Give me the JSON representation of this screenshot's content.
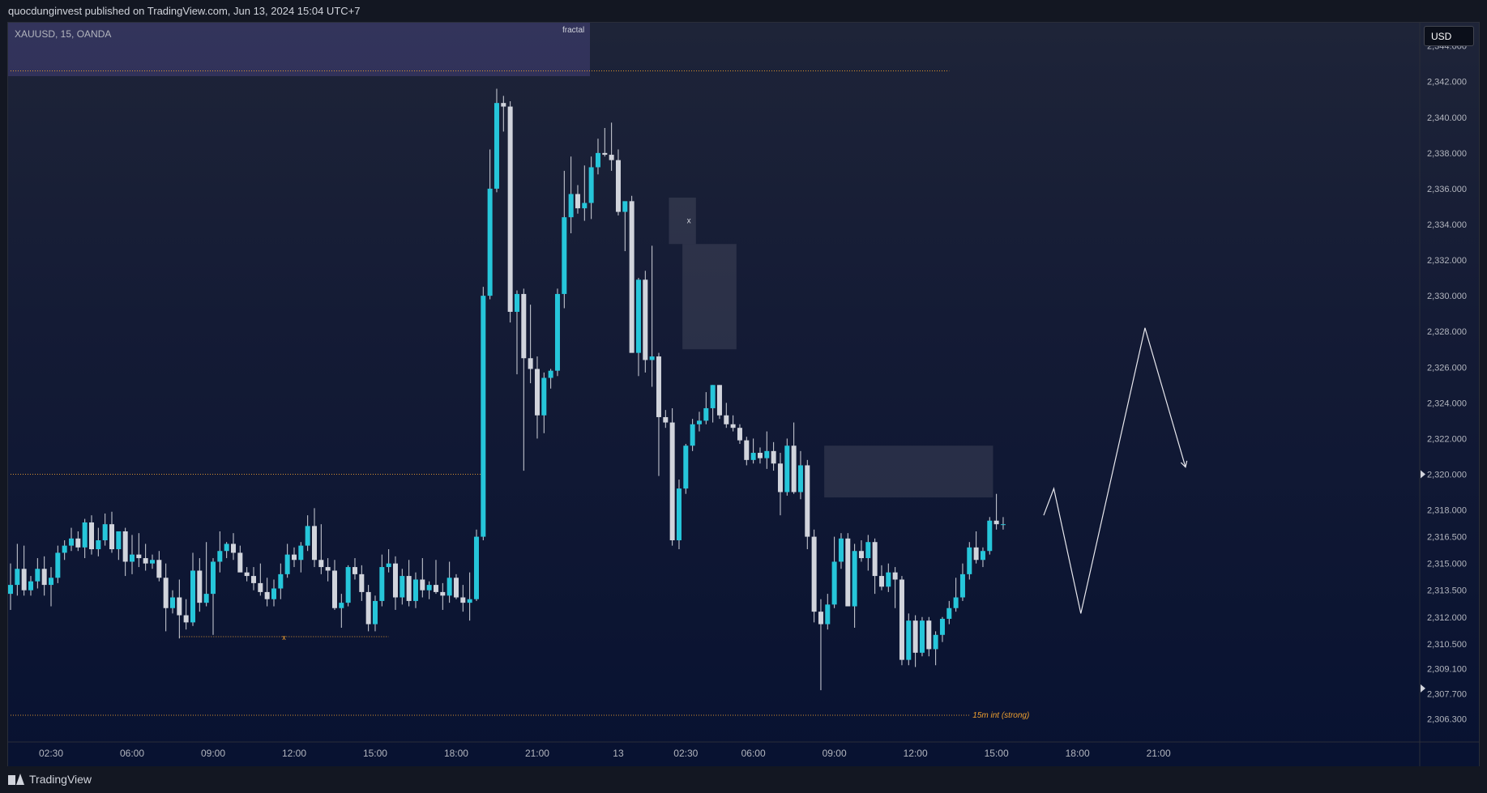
{
  "header": {
    "published_text": "quocdunginvest published on TradingView.com, Jun 13, 2024 15:04 UTC+7"
  },
  "symbol_label": "XAUUSD, 15, OANDA",
  "fractal_label": "fractal",
  "currency_button": "USD",
  "footer": {
    "logo_text": "TradingView"
  },
  "colors": {
    "bull": "#26c6da",
    "bear": "#d1d4dc",
    "accent_line": "#f0a030",
    "text": "#b2b5be"
  },
  "chart_data": {
    "type": "candlestick",
    "symbol": "XAUUSD",
    "interval": "15",
    "ylim": [
      2305,
      2345.3
    ],
    "y_ticks": [
      {
        "value": 2344.0,
        "label": "2,344.000"
      },
      {
        "value": 2342.0,
        "label": "2,342.000"
      },
      {
        "value": 2340.0,
        "label": "2,340.000"
      },
      {
        "value": 2338.0,
        "label": "2,338.000"
      },
      {
        "value": 2336.0,
        "label": "2,336.000"
      },
      {
        "value": 2334.0,
        "label": "2,334.000"
      },
      {
        "value": 2332.0,
        "label": "2,332.000"
      },
      {
        "value": 2330.0,
        "label": "2,330.000"
      },
      {
        "value": 2328.0,
        "label": "2,328.000"
      },
      {
        "value": 2326.0,
        "label": "2,326.000"
      },
      {
        "value": 2324.0,
        "label": "2,324.000"
      },
      {
        "value": 2322.0,
        "label": "2,322.000"
      },
      {
        "value": 2320.0,
        "label": "2,320.000"
      },
      {
        "value": 2318.0,
        "label": "2,318.000"
      },
      {
        "value": 2316.5,
        "label": "2,316.500"
      },
      {
        "value": 2315.0,
        "label": "2,315.000"
      },
      {
        "value": 2313.5,
        "label": "2,313.500"
      },
      {
        "value": 2312.0,
        "label": "2,312.000"
      },
      {
        "value": 2310.5,
        "label": "2,310.500"
      },
      {
        "value": 2309.1,
        "label": "2,309.100"
      },
      {
        "value": 2307.7,
        "label": "2,307.700"
      },
      {
        "value": 2306.3,
        "label": "2,306.300"
      }
    ],
    "x_ticks": [
      {
        "bar": 6,
        "label": "02:30"
      },
      {
        "bar": 18,
        "label": "06:00"
      },
      {
        "bar": 30,
        "label": "09:00"
      },
      {
        "bar": 42,
        "label": "12:00"
      },
      {
        "bar": 54,
        "label": "15:00"
      },
      {
        "bar": 66,
        "label": "18:00"
      },
      {
        "bar": 78,
        "label": "21:00"
      },
      {
        "bar": 90,
        "label": "13"
      },
      {
        "bar": 100,
        "label": "02:30"
      },
      {
        "bar": 110,
        "label": "06:00"
      },
      {
        "bar": 122,
        "label": "09:00"
      },
      {
        "bar": 134,
        "label": "12:00"
      },
      {
        "bar": 146,
        "label": "15:00"
      },
      {
        "bar": 158,
        "label": "18:00"
      },
      {
        "bar": 170,
        "label": "21:00"
      }
    ],
    "price_markers": [
      2320.0,
      2308.0
    ],
    "candles": [
      {
        "o": 2313.3,
        "h": 2315.0,
        "l": 2312.4,
        "c": 2313.8
      },
      {
        "o": 2313.8,
        "h": 2316.1,
        "l": 2313.2,
        "c": 2314.7
      },
      {
        "o": 2314.7,
        "h": 2316.0,
        "l": 2313.2,
        "c": 2313.5
      },
      {
        "o": 2313.5,
        "h": 2314.3,
        "l": 2313.2,
        "c": 2314.0
      },
      {
        "o": 2314.0,
        "h": 2315.3,
        "l": 2313.6,
        "c": 2314.7
      },
      {
        "o": 2314.7,
        "h": 2315.4,
        "l": 2313.2,
        "c": 2313.8
      },
      {
        "o": 2313.8,
        "h": 2314.8,
        "l": 2312.6,
        "c": 2314.2
      },
      {
        "o": 2314.2,
        "h": 2316.0,
        "l": 2313.9,
        "c": 2315.6
      },
      {
        "o": 2315.6,
        "h": 2316.3,
        "l": 2315.2,
        "c": 2316.0
      },
      {
        "o": 2316.0,
        "h": 2317.0,
        "l": 2315.7,
        "c": 2316.4
      },
      {
        "o": 2316.4,
        "h": 2316.8,
        "l": 2315.7,
        "c": 2315.9
      },
      {
        "o": 2315.9,
        "h": 2317.5,
        "l": 2315.3,
        "c": 2317.3
      },
      {
        "o": 2317.3,
        "h": 2317.7,
        "l": 2315.5,
        "c": 2315.8
      },
      {
        "o": 2315.8,
        "h": 2317.0,
        "l": 2315.4,
        "c": 2316.3
      },
      {
        "o": 2316.3,
        "h": 2317.8,
        "l": 2316.0,
        "c": 2317.2
      },
      {
        "o": 2317.2,
        "h": 2317.9,
        "l": 2315.6,
        "c": 2315.8
      },
      {
        "o": 2315.8,
        "h": 2316.5,
        "l": 2315.2,
        "c": 2316.8
      },
      {
        "o": 2316.8,
        "h": 2317.0,
        "l": 2314.3,
        "c": 2315.1
      },
      {
        "o": 2315.1,
        "h": 2316.6,
        "l": 2314.4,
        "c": 2315.5
      },
      {
        "o": 2315.5,
        "h": 2316.7,
        "l": 2314.8,
        "c": 2315.3
      },
      {
        "o": 2315.3,
        "h": 2316.1,
        "l": 2314.6,
        "c": 2315.0
      },
      {
        "o": 2315.0,
        "h": 2315.5,
        "l": 2314.7,
        "c": 2315.2
      },
      {
        "o": 2315.2,
        "h": 2315.7,
        "l": 2314.0,
        "c": 2314.2
      },
      {
        "o": 2314.2,
        "h": 2315.0,
        "l": 2311.2,
        "c": 2312.5
      },
      {
        "o": 2312.5,
        "h": 2313.5,
        "l": 2312.2,
        "c": 2313.1
      },
      {
        "o": 2313.1,
        "h": 2314.1,
        "l": 2310.8,
        "c": 2312.1
      },
      {
        "o": 2312.1,
        "h": 2313.0,
        "l": 2311.3,
        "c": 2311.7
      },
      {
        "o": 2311.7,
        "h": 2315.6,
        "l": 2311.5,
        "c": 2314.6
      },
      {
        "o": 2314.6,
        "h": 2315.3,
        "l": 2312.3,
        "c": 2312.8
      },
      {
        "o": 2312.8,
        "h": 2316.2,
        "l": 2312.6,
        "c": 2313.3
      },
      {
        "o": 2313.3,
        "h": 2315.3,
        "l": 2311.0,
        "c": 2315.1
      },
      {
        "o": 2315.1,
        "h": 2316.8,
        "l": 2314.5,
        "c": 2315.7
      },
      {
        "o": 2315.7,
        "h": 2316.2,
        "l": 2315.3,
        "c": 2316.1
      },
      {
        "o": 2316.1,
        "h": 2316.7,
        "l": 2315.2,
        "c": 2315.6
      },
      {
        "o": 2315.6,
        "h": 2316.0,
        "l": 2314.6,
        "c": 2314.5
      },
      {
        "o": 2314.5,
        "h": 2314.8,
        "l": 2314.0,
        "c": 2314.3
      },
      {
        "o": 2314.3,
        "h": 2314.8,
        "l": 2313.5,
        "c": 2313.9
      },
      {
        "o": 2313.9,
        "h": 2315.0,
        "l": 2313.2,
        "c": 2313.4
      },
      {
        "o": 2313.4,
        "h": 2314.2,
        "l": 2312.6,
        "c": 2313.0
      },
      {
        "o": 2313.0,
        "h": 2314.1,
        "l": 2312.6,
        "c": 2313.6
      },
      {
        "o": 2313.6,
        "h": 2315.0,
        "l": 2313.0,
        "c": 2314.4
      },
      {
        "o": 2314.4,
        "h": 2316.1,
        "l": 2314.2,
        "c": 2315.5
      },
      {
        "o": 2315.5,
        "h": 2315.9,
        "l": 2314.8,
        "c": 2315.2
      },
      {
        "o": 2315.2,
        "h": 2316.2,
        "l": 2314.5,
        "c": 2316.0
      },
      {
        "o": 2316.0,
        "h": 2317.7,
        "l": 2315.7,
        "c": 2317.1
      },
      {
        "o": 2317.1,
        "h": 2318.1,
        "l": 2314.8,
        "c": 2315.2
      },
      {
        "o": 2315.2,
        "h": 2317.2,
        "l": 2314.4,
        "c": 2314.8
      },
      {
        "o": 2314.8,
        "h": 2315.3,
        "l": 2314.0,
        "c": 2314.6
      },
      {
        "o": 2314.6,
        "h": 2315.2,
        "l": 2312.4,
        "c": 2312.5
      },
      {
        "o": 2312.5,
        "h": 2313.3,
        "l": 2311.4,
        "c": 2312.8
      },
      {
        "o": 2312.8,
        "h": 2314.9,
        "l": 2312.6,
        "c": 2314.8
      },
      {
        "o": 2314.8,
        "h": 2315.3,
        "l": 2314.1,
        "c": 2314.4
      },
      {
        "o": 2314.4,
        "h": 2314.9,
        "l": 2312.9,
        "c": 2313.4
      },
      {
        "o": 2313.4,
        "h": 2313.8,
        "l": 2311.2,
        "c": 2311.6
      },
      {
        "o": 2311.6,
        "h": 2313.2,
        "l": 2311.2,
        "c": 2312.9
      },
      {
        "o": 2312.9,
        "h": 2315.5,
        "l": 2312.6,
        "c": 2314.8
      },
      {
        "o": 2314.8,
        "h": 2315.8,
        "l": 2314.5,
        "c": 2315.0
      },
      {
        "o": 2315.0,
        "h": 2315.4,
        "l": 2312.4,
        "c": 2313.1
      },
      {
        "o": 2313.1,
        "h": 2314.7,
        "l": 2312.7,
        "c": 2314.3
      },
      {
        "o": 2314.3,
        "h": 2315.2,
        "l": 2312.6,
        "c": 2312.9
      },
      {
        "o": 2312.9,
        "h": 2314.5,
        "l": 2312.5,
        "c": 2314.1
      },
      {
        "o": 2314.1,
        "h": 2315.3,
        "l": 2313.1,
        "c": 2313.5
      },
      {
        "o": 2313.5,
        "h": 2314.0,
        "l": 2313.0,
        "c": 2313.8
      },
      {
        "o": 2313.8,
        "h": 2315.2,
        "l": 2313.3,
        "c": 2313.4
      },
      {
        "o": 2313.4,
        "h": 2313.9,
        "l": 2312.4,
        "c": 2313.2
      },
      {
        "o": 2313.2,
        "h": 2315.1,
        "l": 2312.8,
        "c": 2314.2
      },
      {
        "o": 2314.2,
        "h": 2314.4,
        "l": 2313.0,
        "c": 2313.1
      },
      {
        "o": 2313.1,
        "h": 2313.8,
        "l": 2312.3,
        "c": 2312.8
      },
      {
        "o": 2312.8,
        "h": 2314.5,
        "l": 2311.8,
        "c": 2313.0
      },
      {
        "o": 2313.0,
        "h": 2316.9,
        "l": 2312.9,
        "c": 2316.5
      },
      {
        "o": 2316.5,
        "h": 2330.5,
        "l": 2316.3,
        "c": 2330.0
      },
      {
        "o": 2330.0,
        "h": 2338.2,
        "l": 2329.8,
        "c": 2336.0
      },
      {
        "o": 2336.0,
        "h": 2341.6,
        "l": 2335.8,
        "c": 2340.8
      },
      {
        "o": 2340.8,
        "h": 2341.2,
        "l": 2339.2,
        "c": 2340.6
      },
      {
        "o": 2340.6,
        "h": 2340.9,
        "l": 2328.5,
        "c": 2329.1
      },
      {
        "o": 2329.1,
        "h": 2330.3,
        "l": 2325.6,
        "c": 2330.1
      },
      {
        "o": 2330.1,
        "h": 2330.4,
        "l": 2320.2,
        "c": 2326.5
      },
      {
        "o": 2326.5,
        "h": 2329.5,
        "l": 2325.1,
        "c": 2325.9
      },
      {
        "o": 2325.9,
        "h": 2326.6,
        "l": 2322.0,
        "c": 2323.3
      },
      {
        "o": 2323.3,
        "h": 2325.7,
        "l": 2322.3,
        "c": 2325.4
      },
      {
        "o": 2325.4,
        "h": 2325.9,
        "l": 2324.8,
        "c": 2325.8
      },
      {
        "o": 2325.8,
        "h": 2330.4,
        "l": 2325.5,
        "c": 2330.1
      },
      {
        "o": 2330.1,
        "h": 2337.0,
        "l": 2329.3,
        "c": 2334.4
      },
      {
        "o": 2334.4,
        "h": 2337.8,
        "l": 2333.5,
        "c": 2335.7
      },
      {
        "o": 2335.7,
        "h": 2336.2,
        "l": 2334.6,
        "c": 2334.9
      },
      {
        "o": 2334.9,
        "h": 2337.3,
        "l": 2334.2,
        "c": 2335.2
      },
      {
        "o": 2335.2,
        "h": 2337.8,
        "l": 2334.3,
        "c": 2337.2
      },
      {
        "o": 2337.2,
        "h": 2338.8,
        "l": 2336.8,
        "c": 2338.0
      },
      {
        "o": 2338.0,
        "h": 2339.4,
        "l": 2337.8,
        "c": 2337.9
      },
      {
        "o": 2337.9,
        "h": 2339.7,
        "l": 2337.0,
        "c": 2337.6
      },
      {
        "o": 2337.6,
        "h": 2338.2,
        "l": 2334.5,
        "c": 2334.7
      },
      {
        "o": 2334.7,
        "h": 2335.1,
        "l": 2332.5,
        "c": 2335.3
      },
      {
        "o": 2335.3,
        "h": 2335.6,
        "l": 2326.9,
        "c": 2326.8
      },
      {
        "o": 2326.8,
        "h": 2331.0,
        "l": 2325.5,
        "c": 2330.9
      },
      {
        "o": 2330.9,
        "h": 2331.4,
        "l": 2325.7,
        "c": 2326.4
      },
      {
        "o": 2326.4,
        "h": 2332.8,
        "l": 2324.9,
        "c": 2326.6
      },
      {
        "o": 2326.6,
        "h": 2326.8,
        "l": 2319.9,
        "c": 2323.2
      },
      {
        "o": 2323.2,
        "h": 2323.6,
        "l": 2322.6,
        "c": 2322.9
      },
      {
        "o": 2322.9,
        "h": 2323.7,
        "l": 2316.0,
        "c": 2316.3
      },
      {
        "o": 2316.3,
        "h": 2319.7,
        "l": 2315.8,
        "c": 2319.2
      },
      {
        "o": 2319.2,
        "h": 2321.7,
        "l": 2318.9,
        "c": 2321.6
      },
      {
        "o": 2321.6,
        "h": 2323.1,
        "l": 2321.3,
        "c": 2322.8
      },
      {
        "o": 2322.8,
        "h": 2323.5,
        "l": 2322.4,
        "c": 2323.0
      },
      {
        "o": 2323.0,
        "h": 2324.6,
        "l": 2322.8,
        "c": 2323.7
      },
      {
        "o": 2323.7,
        "h": 2325.0,
        "l": 2322.9,
        "c": 2325.0
      },
      {
        "o": 2325.0,
        "h": 2325.0,
        "l": 2323.1,
        "c": 2323.3
      },
      {
        "o": 2323.3,
        "h": 2324.0,
        "l": 2322.6,
        "c": 2322.8
      },
      {
        "o": 2322.8,
        "h": 2323.3,
        "l": 2322.4,
        "c": 2322.6
      },
      {
        "o": 2322.6,
        "h": 2322.8,
        "l": 2321.7,
        "c": 2321.9
      },
      {
        "o": 2321.9,
        "h": 2322.1,
        "l": 2320.5,
        "c": 2320.8
      },
      {
        "o": 2320.8,
        "h": 2322.0,
        "l": 2320.6,
        "c": 2321.2
      },
      {
        "o": 2321.2,
        "h": 2321.5,
        "l": 2320.6,
        "c": 2320.9
      },
      {
        "o": 2320.9,
        "h": 2322.4,
        "l": 2320.3,
        "c": 2321.3
      },
      {
        "o": 2321.3,
        "h": 2321.8,
        "l": 2320.2,
        "c": 2320.6
      },
      {
        "o": 2320.6,
        "h": 2321.2,
        "l": 2317.7,
        "c": 2319.0
      },
      {
        "o": 2319.0,
        "h": 2322.0,
        "l": 2318.8,
        "c": 2321.6
      },
      {
        "o": 2321.6,
        "h": 2322.9,
        "l": 2318.9,
        "c": 2319.0
      },
      {
        "o": 2319.0,
        "h": 2321.3,
        "l": 2318.6,
        "c": 2320.5
      },
      {
        "o": 2320.5,
        "h": 2320.8,
        "l": 2315.8,
        "c": 2316.5
      },
      {
        "o": 2316.5,
        "h": 2316.9,
        "l": 2311.7,
        "c": 2312.3
      },
      {
        "o": 2312.3,
        "h": 2313.0,
        "l": 2307.9,
        "c": 2311.6
      },
      {
        "o": 2311.6,
        "h": 2313.3,
        "l": 2311.3,
        "c": 2312.7
      },
      {
        "o": 2312.7,
        "h": 2316.5,
        "l": 2312.5,
        "c": 2315.1
      },
      {
        "o": 2315.1,
        "h": 2316.7,
        "l": 2314.7,
        "c": 2316.4
      },
      {
        "o": 2316.4,
        "h": 2316.7,
        "l": 2312.8,
        "c": 2312.6
      },
      {
        "o": 2312.6,
        "h": 2316.1,
        "l": 2311.4,
        "c": 2315.7
      },
      {
        "o": 2315.7,
        "h": 2316.3,
        "l": 2315.1,
        "c": 2315.3
      },
      {
        "o": 2315.3,
        "h": 2316.6,
        "l": 2314.6,
        "c": 2316.2
      },
      {
        "o": 2316.2,
        "h": 2316.4,
        "l": 2313.3,
        "c": 2314.3
      },
      {
        "o": 2314.3,
        "h": 2314.9,
        "l": 2313.5,
        "c": 2313.7
      },
      {
        "o": 2313.7,
        "h": 2315.0,
        "l": 2313.4,
        "c": 2314.5
      },
      {
        "o": 2314.5,
        "h": 2314.8,
        "l": 2312.5,
        "c": 2314.1
      },
      {
        "o": 2314.1,
        "h": 2314.3,
        "l": 2309.3,
        "c": 2309.6
      },
      {
        "o": 2309.6,
        "h": 2312.2,
        "l": 2309.3,
        "c": 2311.8
      },
      {
        "o": 2311.8,
        "h": 2312.1,
        "l": 2309.2,
        "c": 2310.0
      },
      {
        "o": 2310.0,
        "h": 2312.0,
        "l": 2309.8,
        "c": 2311.8
      },
      {
        "o": 2311.8,
        "h": 2312.0,
        "l": 2309.8,
        "c": 2310.2
      },
      {
        "o": 2310.2,
        "h": 2311.2,
        "l": 2309.3,
        "c": 2311.0
      },
      {
        "o": 2311.0,
        "h": 2312.0,
        "l": 2310.6,
        "c": 2311.9
      },
      {
        "o": 2311.9,
        "h": 2312.9,
        "l": 2311.6,
        "c": 2312.5
      },
      {
        "o": 2312.5,
        "h": 2314.2,
        "l": 2312.3,
        "c": 2313.1
      },
      {
        "o": 2313.1,
        "h": 2315.0,
        "l": 2312.9,
        "c": 2314.4
      },
      {
        "o": 2314.4,
        "h": 2316.2,
        "l": 2314.1,
        "c": 2315.9
      },
      {
        "o": 2315.9,
        "h": 2316.8,
        "l": 2315.0,
        "c": 2315.2
      },
      {
        "o": 2315.2,
        "h": 2315.9,
        "l": 2314.8,
        "c": 2315.7
      },
      {
        "o": 2315.7,
        "h": 2317.6,
        "l": 2315.5,
        "c": 2317.4
      },
      {
        "o": 2317.4,
        "h": 2318.9,
        "l": 2316.9,
        "c": 2317.2
      },
      {
        "o": 2317.2,
        "h": 2317.6,
        "l": 2316.9,
        "c": 2317.2
      }
    ],
    "zones": [
      {
        "bar_from": 97.5,
        "bar_to": 101.5,
        "top": 2335.5,
        "bottom": 2332.9,
        "label": "x"
      },
      {
        "bar_from": 99.5,
        "bar_to": 107.5,
        "top": 2332.9,
        "bottom": 2327.0
      },
      {
        "bar_from": 120.5,
        "bar_to": 145.5,
        "top": 2321.6,
        "bottom": 2318.7
      }
    ],
    "levels": [
      {
        "price": 2342.6,
        "bar_from": 0,
        "bar_to": 139,
        "style": "dotted",
        "color": "#f0a030"
      },
      {
        "price": 2320.0,
        "bar_from": 0,
        "bar_to": 70,
        "style": "dotted",
        "color": "#f0a030"
      },
      {
        "price": 2310.9,
        "bar_from": 25,
        "bar_to": 56,
        "style": "dotted",
        "color": "#f0a030",
        "label": "x"
      },
      {
        "price": 2306.5,
        "bar_from": 0,
        "bar_to": 142,
        "style": "dotted",
        "color": "#f0a030",
        "label": "15m int (strong)"
      }
    ],
    "projection": [
      {
        "bar": 153,
        "price": 2317.7
      },
      {
        "bar": 154.5,
        "price": 2319.2
      },
      {
        "bar": 158.5,
        "price": 2312.2
      },
      {
        "bar": 168,
        "price": 2328.2
      },
      {
        "bar": 174,
        "price": 2320.4
      }
    ]
  }
}
